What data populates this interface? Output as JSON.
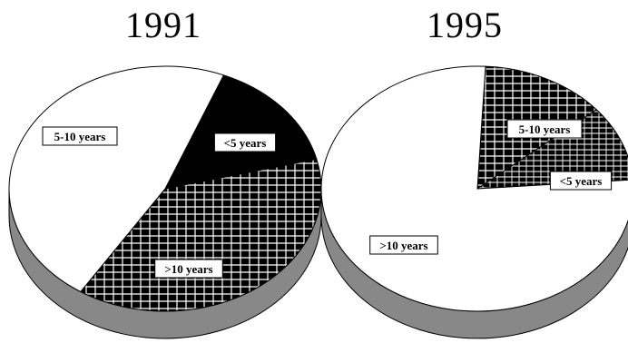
{
  "chart_data": [
    {
      "type": "pie",
      "title": "1991",
      "slices": [
        {
          "label": "<5 years",
          "value": 15,
          "pattern": "solid-black"
        },
        {
          "label": "5-10 years",
          "value": 38,
          "pattern": "grid"
        },
        {
          "label": ">10 years",
          "value": 47,
          "pattern": "white"
        }
      ],
      "style": "3d-tilted",
      "side_color": "#888888"
    },
    {
      "type": "pie",
      "title": "1995",
      "slices": [
        {
          "label": "5-10 years",
          "value": 13,
          "pattern": "grid"
        },
        {
          "label": "<5 years",
          "value": 10,
          "pattern": "grid-dense"
        },
        {
          "label": ">10 years",
          "value": 77,
          "pattern": "white"
        }
      ],
      "style": "3d-tilted",
      "side_color": "#888888"
    }
  ]
}
